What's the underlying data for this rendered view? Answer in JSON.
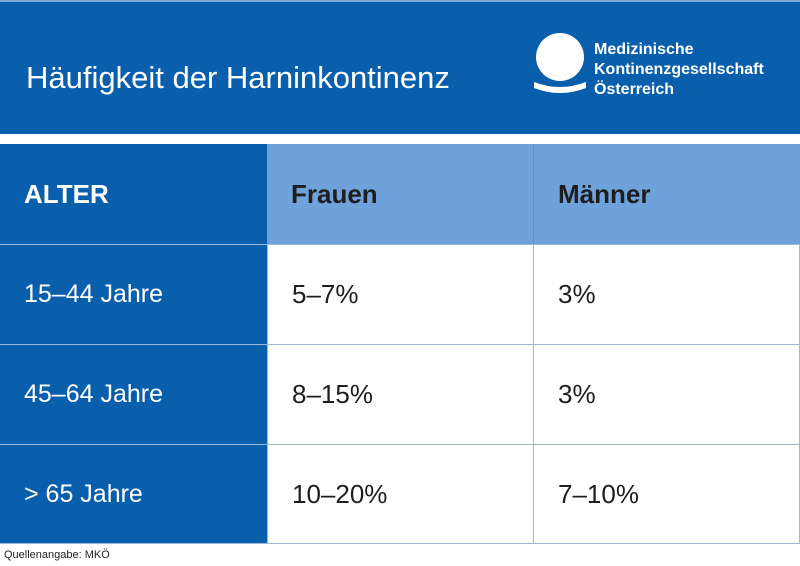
{
  "header": {
    "title": "Häufigkeit der Harninkontinenz",
    "logo": {
      "icon": "organization-logo-icon",
      "lines": [
        "Medizinische",
        "Kontinenzgesellschaft",
        "Österreich"
      ]
    }
  },
  "table": {
    "columns": [
      "ALTER",
      "Frauen",
      "Männer"
    ],
    "rows": [
      [
        "15–44 Jahre",
        "5–7%",
        "3%"
      ],
      [
        "45–64 Jahre",
        "8–15%",
        "3%"
      ],
      [
        "> 65 Jahre",
        "10–20%",
        "7–10%"
      ]
    ]
  },
  "footer": {
    "source": "Quellenangabe: MKÖ"
  },
  "colors": {
    "primary_blue": "#0a5fad",
    "header_light_blue": "#6fa2da",
    "text_dark": "#1e1e1e",
    "white": "#ffffff"
  }
}
